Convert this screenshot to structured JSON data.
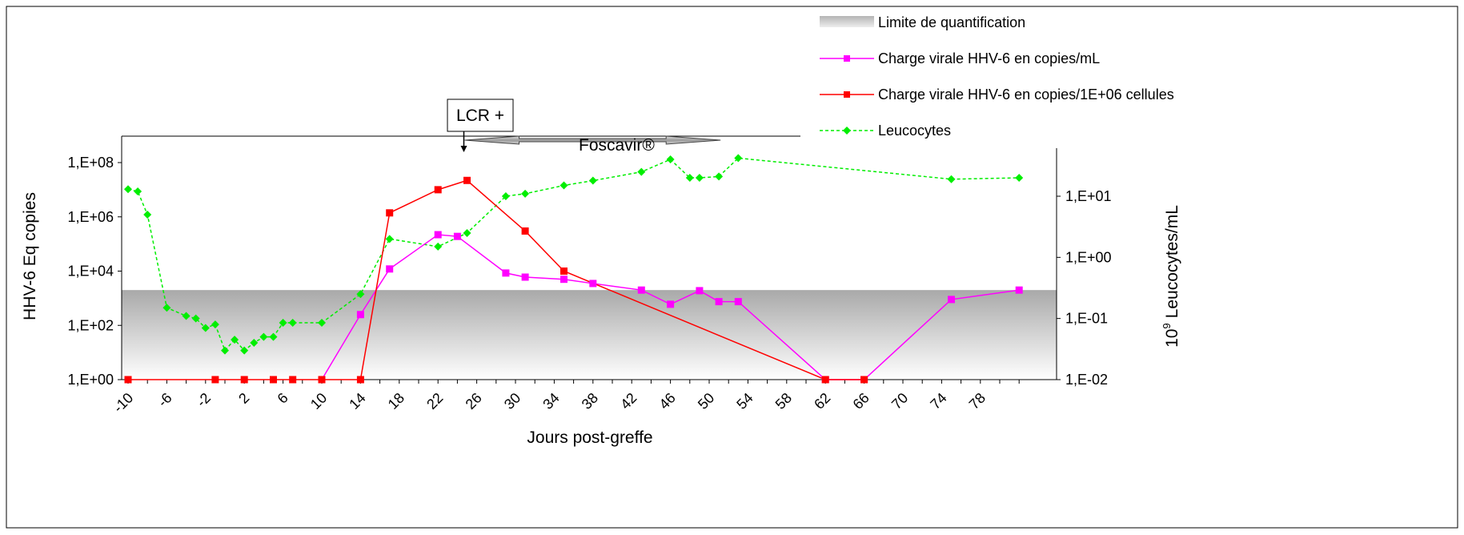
{
  "chart_data": {
    "type": "line",
    "xlabel": "Jours post-greffe",
    "ylabel_left": "HHV-6 Eq copies",
    "ylabel_right_exp": "9",
    "ylabel_right_base": "10",
    "ylabel_right_text": "Leucocytes/mL",
    "x_ticks": [
      "-10",
      "-6",
      "-2",
      "2",
      "6",
      "10",
      "14",
      "18",
      "22",
      "26",
      "30",
      "34",
      "38",
      "42",
      "46",
      "50",
      "54",
      "58",
      "62",
      "66",
      "70",
      "74",
      "78"
    ],
    "xlim": [
      -10,
      82
    ],
    "y_left": {
      "scale": "log10",
      "range": [
        1,
        100000000
      ],
      "ticks": [
        "1,E+00",
        "1,E+02",
        "1,E+04",
        "1,E+06",
        "1,E+08"
      ],
      "tick_values": [
        1,
        100,
        10000,
        1000000,
        100000000
      ]
    },
    "y_right": {
      "scale": "log10",
      "range": [
        0.01,
        100
      ],
      "ticks": [
        "1,E-02",
        "1,E-01",
        "1,E+00",
        "1,E+01"
      ],
      "tick_values": [
        0.01,
        0.1,
        1,
        10
      ]
    },
    "quantification_limit": 2000,
    "annotations": {
      "lcr_label": "LCR +",
      "lcr_day": 25,
      "foscavir_label": "Foscavir®",
      "foscavir_start_day": 25,
      "foscavir_end_day": 52
    },
    "legend": {
      "position": "top-right",
      "items": [
        {
          "key": "limit",
          "label": "Limite de quantification"
        },
        {
          "key": "ml",
          "label": "Charge virale HHV-6 en copies/mL"
        },
        {
          "key": "cells",
          "label": "Charge virale HHV-6 en copies/1E+06 cellules"
        },
        {
          "key": "leuco",
          "label": "Leucocytes"
        }
      ]
    },
    "series": [
      {
        "name": "Charge virale HHV-6 en copies/mL",
        "axis": "left",
        "color": "#ff00ff",
        "x": [
          10,
          14,
          17,
          22,
          24,
          29,
          31,
          35,
          38,
          43,
          46,
          49,
          51,
          53,
          62,
          66,
          75,
          82
        ],
        "y": [
          1,
          250,
          12000,
          220000,
          190000,
          8500,
          6000,
          5000,
          3500,
          2000,
          600,
          1900,
          750,
          750,
          1,
          1,
          900,
          2000
        ]
      },
      {
        "name": "Charge virale HHV-6 en copies/1E+06 cellules",
        "axis": "left",
        "color": "#ff0000",
        "x": [
          -10,
          -1,
          2,
          5,
          7,
          10,
          14,
          17,
          22,
          25,
          31,
          35,
          62,
          66
        ],
        "y": [
          1,
          1,
          1,
          1,
          1,
          1,
          1,
          1400000,
          10000000,
          22000000,
          300000,
          10000,
          1,
          1
        ]
      },
      {
        "name": "Leucocytes",
        "axis": "right",
        "color": "#00ee00",
        "x": [
          -10,
          -9,
          -8,
          -6,
          -4,
          -3,
          -2,
          -1,
          0,
          1,
          2,
          3,
          4,
          5,
          6,
          7,
          10,
          14,
          17,
          22,
          25,
          29,
          31,
          35,
          38,
          43,
          46,
          48,
          49,
          51,
          53,
          75,
          82
        ],
        "y": [
          13,
          12,
          5,
          0.15,
          0.11,
          0.1,
          0.07,
          0.08,
          0.03,
          0.045,
          0.03,
          0.04,
          0.05,
          0.05,
          0.085,
          0.085,
          0.085,
          0.25,
          2,
          1.5,
          2.5,
          10,
          11,
          15,
          18,
          25,
          40,
          20,
          20,
          21,
          42,
          19,
          20
        ]
      }
    ]
  }
}
